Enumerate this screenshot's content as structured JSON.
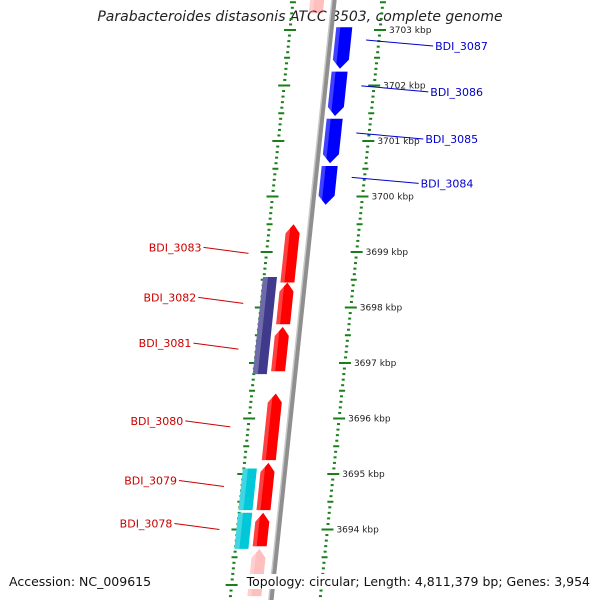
{
  "title": "Parabacteroides distasonis ATCC 8503, complete genome",
  "accession_text": "Accession: NC_009615",
  "topology_text": "Topology: circular; Length: 4,811,379 bp; Genes: 3,954",
  "colors": {
    "forward_gene": "#0000ff",
    "reverse_gene": "#ff0000",
    "navy_feature": "#3f3a8c",
    "cyan_feature": "#00c8d8",
    "tick": "#1a7f1a",
    "backbone": "#8f8f8f",
    "forward_label": "#0000cc",
    "reverse_label": "#cc0000"
  },
  "kbp_labels": [
    {
      "kbp": 3703,
      "text": "3703 kbp"
    },
    {
      "kbp": 3702,
      "text": "3702 kbp"
    },
    {
      "kbp": 3701,
      "text": "3701 kbp"
    },
    {
      "kbp": 3700,
      "text": "3700 kbp"
    },
    {
      "kbp": 3699,
      "text": "3699 kbp"
    },
    {
      "kbp": 3698,
      "text": "3698 kbp"
    },
    {
      "kbp": 3697,
      "text": "3697 kbp"
    },
    {
      "kbp": 3696,
      "text": "3696 kbp"
    },
    {
      "kbp": 3695,
      "text": "3695 kbp"
    },
    {
      "kbp": 3694,
      "text": "3694 kbp"
    }
  ],
  "genes": [
    {
      "name": "BDI_3087",
      "strand": "forward",
      "start": 3702.3,
      "end": 3703.05,
      "labeled": true
    },
    {
      "name": "BDI_3086",
      "strand": "forward",
      "start": 3701.45,
      "end": 3702.25,
      "labeled": true
    },
    {
      "name": "BDI_3085",
      "strand": "forward",
      "start": 3700.6,
      "end": 3701.4,
      "labeled": true
    },
    {
      "name": "BDI_3084",
      "strand": "forward",
      "start": 3699.85,
      "end": 3700.55,
      "labeled": true
    },
    {
      "name": "BDI_3083",
      "strand": "reverse",
      "start": 3698.45,
      "end": 3699.5,
      "labeled": true
    },
    {
      "name": "BDI_3082",
      "strand": "reverse",
      "start": 3697.7,
      "end": 3698.45,
      "labeled": true
    },
    {
      "name": "BDI_3081",
      "strand": "reverse",
      "start": 3696.85,
      "end": 3697.65,
      "labeled": true
    },
    {
      "name": "BDI_3080",
      "strand": "reverse",
      "start": 3695.25,
      "end": 3696.45,
      "labeled": true
    },
    {
      "name": "BDI_3079",
      "strand": "reverse",
      "start": 3694.35,
      "end": 3695.2,
      "labeled": true
    },
    {
      "name": "BDI_3078",
      "strand": "reverse",
      "start": 3693.7,
      "end": 3694.3,
      "labeled": true
    },
    {
      "name": "",
      "strand": "reverse",
      "start": 3692.8,
      "end": 3693.65,
      "labeled": false
    },
    {
      "name": "",
      "strand": "reverse",
      "start": 3703.3,
      "end": 3703.7,
      "labeled": false
    }
  ],
  "other_features": [
    {
      "kind": "navy",
      "start": 3696.8,
      "end": 3698.55
    },
    {
      "kind": "cyan",
      "start": 3694.35,
      "end": 3695.1
    },
    {
      "kind": "cyan",
      "start": 3693.65,
      "end": 3694.3
    }
  ]
}
